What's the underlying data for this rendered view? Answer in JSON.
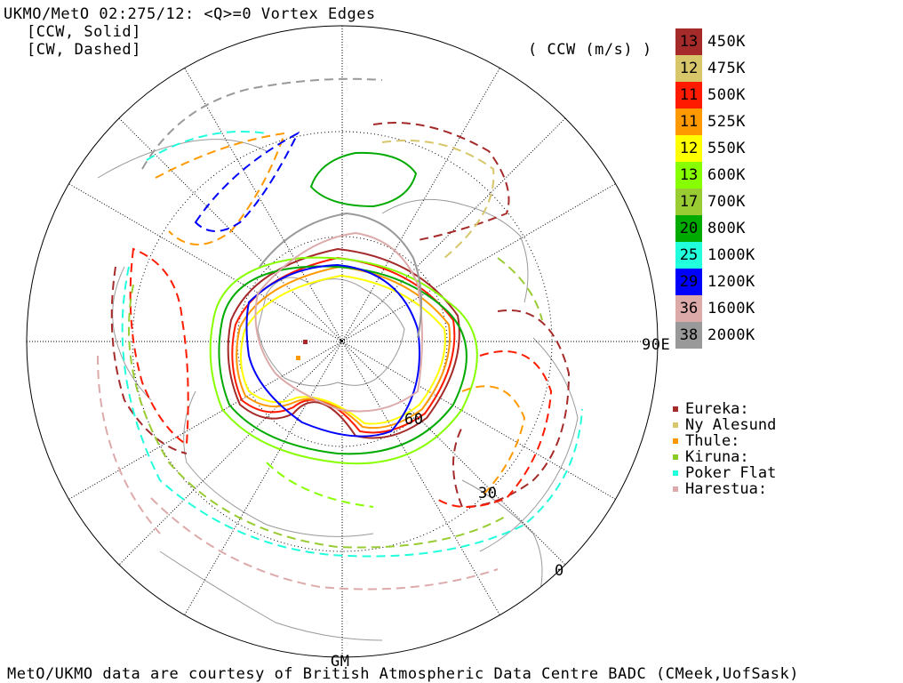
{
  "header": {
    "title": "UKMO/MetO 02:275/12: <Q>=0 Vortex Edges",
    "line2": "[CCW, Solid]",
    "line3": "[CW, Dashed]",
    "units": "( CCW (m/s) )"
  },
  "levels": [
    {
      "value": "13",
      "label": "450K",
      "color": "#a52a2a"
    },
    {
      "value": "12",
      "label": "475K",
      "color": "#d7c66a"
    },
    {
      "value": "11",
      "label": "500K",
      "color": "#ff1a00"
    },
    {
      "value": "11",
      "label": "525K",
      "color": "#ff9900"
    },
    {
      "value": "12",
      "label": "550K",
      "color": "#ffff00"
    },
    {
      "value": "13",
      "label": "600K",
      "color": "#88ff00"
    },
    {
      "value": "17",
      "label": "700K",
      "color": "#99cc33"
    },
    {
      "value": "20",
      "label": "800K",
      "color": "#00aa00"
    },
    {
      "value": "25",
      "label": "1000K",
      "color": "#22ffdd"
    },
    {
      "value": "29",
      "label": "1200K",
      "color": "#0000ff"
    },
    {
      "value": "36",
      "label": "1600K",
      "color": "#ddaaaa"
    },
    {
      "value": "38",
      "label": "2000K",
      "color": "#999999"
    }
  ],
  "stations": [
    {
      "name": "Eureka:",
      "color": "#a52a2a"
    },
    {
      "name": "Ny Alesund",
      "color": "#d7c66a"
    },
    {
      "name": "Thule:",
      "color": "#ff9900"
    },
    {
      "name": "Kiruna:",
      "color": "#88cc22"
    },
    {
      "name": "Poker Flat",
      "color": "#22ffdd"
    },
    {
      "name": "Harestua:",
      "color": "#ddaaaa"
    }
  ],
  "map_labels": {
    "lon_east": "90E",
    "lon_gm": "GM",
    "lat_60": "60",
    "lat_30": "30",
    "lat_0": "0"
  },
  "footer": "MetO/UKMO data are courtesy of British Atmospheric Data Centre BADC (CMeek,UofSask)"
}
